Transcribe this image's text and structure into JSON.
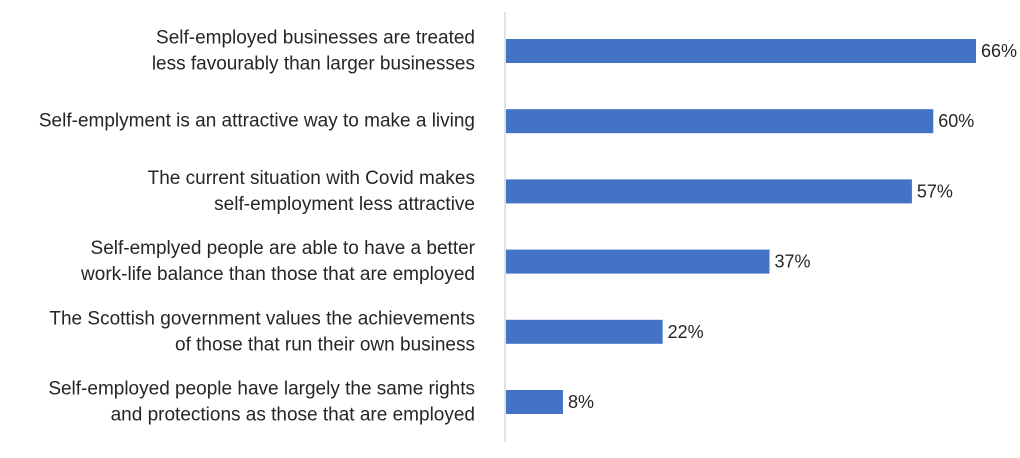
{
  "chart_data": {
    "type": "bar",
    "orientation": "horizontal",
    "title": "",
    "xlabel": "",
    "ylabel": "",
    "xlim": [
      0,
      66
    ],
    "grid": false,
    "legend": "none",
    "bar_color": "#4472C4",
    "axis_color": "#D9D9D9",
    "text_color": "#262626",
    "categories": [
      [
        "Self-employed businesses are treated",
        "less favourably than larger businesses"
      ],
      [
        "Self-emplyment is an attractive way to make a living"
      ],
      [
        "The current situation with Covid makes",
        "self-employment less attractive"
      ],
      [
        "Self-emplyed people are able to have a better",
        "work-life balance than those that are employed"
      ],
      [
        "The Scottish government values the achievements",
        "of those that run their own business"
      ],
      [
        "Self-employed people have largely the same rights",
        "and protections as those that are employed"
      ]
    ],
    "values": [
      66,
      60,
      57,
      37,
      22,
      8
    ],
    "data_labels": [
      "66%",
      "60%",
      "57%",
      "37%",
      "22%",
      "8%"
    ]
  }
}
